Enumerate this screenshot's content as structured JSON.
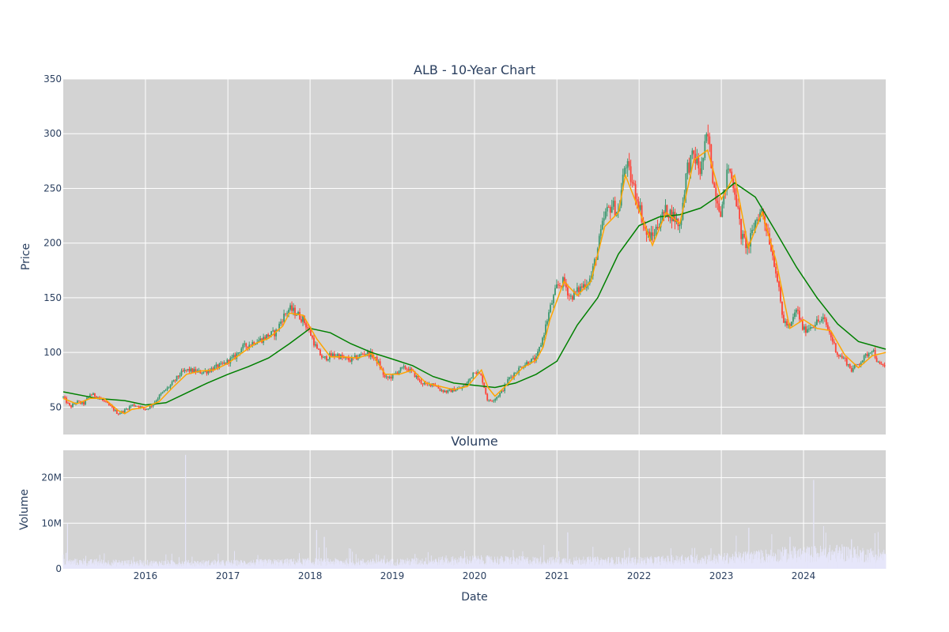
{
  "chart_data": [
    {
      "type": "candlestick",
      "title": "ALB - 10-Year Chart",
      "ylabel": "Price",
      "ylim": [
        25,
        350
      ],
      "xlim": [
        "2015-01-01",
        "2024-12-31"
      ],
      "yticks": [
        50,
        100,
        150,
        200,
        250,
        300,
        350
      ],
      "grid": true,
      "background": "#d3d3d3",
      "colors": {
        "up": "#3d9970",
        "down": "#ff4136",
        "ma_short": "#ffa500",
        "ma_long": "#008000"
      },
      "price_path": [
        [
          "2015-01-01",
          59
        ],
        [
          "2015-02-01",
          50
        ],
        [
          "2015-03-01",
          55
        ],
        [
          "2015-04-01",
          53
        ],
        [
          "2015-05-01",
          62
        ],
        [
          "2015-06-01",
          60
        ],
        [
          "2015-07-01",
          55
        ],
        [
          "2015-08-01",
          50
        ],
        [
          "2015-09-01",
          44
        ],
        [
          "2015-10-01",
          47
        ],
        [
          "2015-11-01",
          52
        ],
        [
          "2015-12-01",
          51
        ],
        [
          "2016-01-01",
          48
        ],
        [
          "2016-02-01",
          52
        ],
        [
          "2016-03-01",
          60
        ],
        [
          "2016-04-01",
          66
        ],
        [
          "2016-05-01",
          72
        ],
        [
          "2016-06-01",
          80
        ],
        [
          "2016-07-01",
          84
        ],
        [
          "2016-08-01",
          83
        ],
        [
          "2016-09-01",
          82
        ],
        [
          "2016-10-01",
          83
        ],
        [
          "2016-11-01",
          86
        ],
        [
          "2016-12-01",
          88
        ],
        [
          "2017-01-01",
          92
        ],
        [
          "2017-02-01",
          96
        ],
        [
          "2017-03-01",
          104
        ],
        [
          "2017-04-01",
          107
        ],
        [
          "2017-05-01",
          110
        ],
        [
          "2017-06-01",
          112
        ],
        [
          "2017-07-01",
          116
        ],
        [
          "2017-08-01",
          118
        ],
        [
          "2017-09-01",
          132
        ],
        [
          "2017-10-01",
          140
        ],
        [
          "2017-11-01",
          136
        ],
        [
          "2017-12-01",
          130
        ],
        [
          "2018-01-01",
          118
        ],
        [
          "2018-02-01",
          102
        ],
        [
          "2018-03-01",
          94
        ],
        [
          "2018-04-01",
          97
        ],
        [
          "2018-05-01",
          98
        ],
        [
          "2018-06-01",
          94
        ],
        [
          "2018-07-01",
          93
        ],
        [
          "2018-08-01",
          96
        ],
        [
          "2018-09-01",
          100
        ],
        [
          "2018-10-01",
          98
        ],
        [
          "2018-11-01",
          90
        ],
        [
          "2018-12-01",
          76
        ],
        [
          "2019-01-01",
          78
        ],
        [
          "2019-02-01",
          84
        ],
        [
          "2019-03-01",
          86
        ],
        [
          "2019-04-01",
          82
        ],
        [
          "2019-05-01",
          74
        ],
        [
          "2019-06-01",
          70
        ],
        [
          "2019-07-01",
          72
        ],
        [
          "2019-08-01",
          66
        ],
        [
          "2019-09-01",
          64
        ],
        [
          "2019-10-01",
          66
        ],
        [
          "2019-11-01",
          67
        ],
        [
          "2019-12-01",
          72
        ],
        [
          "2020-01-01",
          84
        ],
        [
          "2020-02-01",
          78
        ],
        [
          "2020-03-01",
          55
        ],
        [
          "2020-04-01",
          58
        ],
        [
          "2020-05-01",
          64
        ],
        [
          "2020-06-01",
          76
        ],
        [
          "2020-07-01",
          82
        ],
        [
          "2020-08-01",
          88
        ],
        [
          "2020-09-01",
          92
        ],
        [
          "2020-10-01",
          94
        ],
        [
          "2020-11-01",
          115
        ],
        [
          "2020-12-01",
          140
        ],
        [
          "2021-01-01",
          160
        ],
        [
          "2021-02-01",
          165
        ],
        [
          "2021-03-01",
          150
        ],
        [
          "2021-04-01",
          156
        ],
        [
          "2021-05-01",
          162
        ],
        [
          "2021-06-01",
          168
        ],
        [
          "2021-07-01",
          195
        ],
        [
          "2021-08-01",
          225
        ],
        [
          "2021-09-01",
          235
        ],
        [
          "2021-10-01",
          228
        ],
        [
          "2021-11-01",
          275
        ],
        [
          "2021-12-01",
          255
        ],
        [
          "2022-01-01",
          235
        ],
        [
          "2022-02-01",
          208
        ],
        [
          "2022-03-01",
          205
        ],
        [
          "2022-04-01",
          220
        ],
        [
          "2022-05-01",
          230
        ],
        [
          "2022-06-01",
          225
        ],
        [
          "2022-07-01",
          215
        ],
        [
          "2022-08-01",
          268
        ],
        [
          "2022-09-01",
          280
        ],
        [
          "2022-10-01",
          265
        ],
        [
          "2022-11-01",
          300
        ],
        [
          "2022-12-01",
          250
        ],
        [
          "2023-01-01",
          228
        ],
        [
          "2023-02-01",
          270
        ],
        [
          "2023-03-01",
          250
        ],
        [
          "2023-04-01",
          205
        ],
        [
          "2023-05-01",
          196
        ],
        [
          "2023-06-01",
          220
        ],
        [
          "2023-07-01",
          230
        ],
        [
          "2023-08-01",
          205
        ],
        [
          "2023-09-01",
          175
        ],
        [
          "2023-10-01",
          130
        ],
        [
          "2023-11-01",
          122
        ],
        [
          "2023-12-01",
          140
        ],
        [
          "2024-01-01",
          120
        ],
        [
          "2024-02-01",
          124
        ],
        [
          "2024-03-01",
          128
        ],
        [
          "2024-04-01",
          130
        ],
        [
          "2024-05-01",
          115
        ],
        [
          "2024-06-01",
          98
        ],
        [
          "2024-07-01",
          94
        ],
        [
          "2024-08-01",
          84
        ],
        [
          "2024-09-01",
          90
        ],
        [
          "2024-10-01",
          96
        ],
        [
          "2024-11-01",
          104
        ],
        [
          "2024-12-01",
          88
        ]
      ],
      "ma_short": [
        [
          "2015-01-01",
          58
        ],
        [
          "2015-03-01",
          53
        ],
        [
          "2015-05-01",
          58
        ],
        [
          "2015-07-01",
          58
        ],
        [
          "2015-09-01",
          47
        ],
        [
          "2015-10-01",
          44
        ],
        [
          "2015-11-01",
          48
        ],
        [
          "2016-01-01",
          50
        ],
        [
          "2016-03-01",
          55
        ],
        [
          "2016-05-01",
          68
        ],
        [
          "2016-07-01",
          80
        ],
        [
          "2016-09-01",
          83
        ],
        [
          "2016-11-01",
          84
        ],
        [
          "2017-01-01",
          90
        ],
        [
          "2017-03-01",
          99
        ],
        [
          "2017-05-01",
          108
        ],
        [
          "2017-07-01",
          113
        ],
        [
          "2017-09-01",
          124
        ],
        [
          "2017-10-01",
          136
        ],
        [
          "2017-12-01",
          134
        ],
        [
          "2018-02-01",
          112
        ],
        [
          "2018-04-01",
          96
        ],
        [
          "2018-06-01",
          96
        ],
        [
          "2018-08-01",
          95
        ],
        [
          "2018-10-01",
          99
        ],
        [
          "2018-12-01",
          80
        ],
        [
          "2019-02-01",
          80
        ],
        [
          "2019-04-01",
          84
        ],
        [
          "2019-06-01",
          72
        ],
        [
          "2019-08-01",
          69
        ],
        [
          "2019-10-01",
          66
        ],
        [
          "2019-12-01",
          69
        ],
        [
          "2020-02-01",
          84
        ],
        [
          "2020-03-01",
          68
        ],
        [
          "2020-04-01",
          60
        ],
        [
          "2020-06-01",
          72
        ],
        [
          "2020-08-01",
          86
        ],
        [
          "2020-10-01",
          93
        ],
        [
          "2020-11-01",
          105
        ],
        [
          "2020-12-01",
          130
        ],
        [
          "2021-02-01",
          165
        ],
        [
          "2021-04-01",
          152
        ],
        [
          "2021-06-01",
          165
        ],
        [
          "2021-08-01",
          215
        ],
        [
          "2021-10-01",
          228
        ],
        [
          "2021-11-01",
          262
        ],
        [
          "2022-01-01",
          230
        ],
        [
          "2022-03-01",
          198
        ],
        [
          "2022-05-01",
          228
        ],
        [
          "2022-07-01",
          218
        ],
        [
          "2022-09-01",
          276
        ],
        [
          "2022-11-01",
          285
        ],
        [
          "2023-01-01",
          240
        ],
        [
          "2023-03-01",
          262
        ],
        [
          "2023-05-01",
          196
        ],
        [
          "2023-07-01",
          228
        ],
        [
          "2023-09-01",
          184
        ],
        [
          "2023-11-01",
          122
        ],
        [
          "2024-01-01",
          130
        ],
        [
          "2024-03-01",
          122
        ],
        [
          "2024-05-01",
          120
        ],
        [
          "2024-07-01",
          98
        ],
        [
          "2024-09-01",
          86
        ],
        [
          "2024-11-01",
          97
        ],
        [
          "2024-12-31",
          100
        ]
      ],
      "ma_long": [
        [
          "2015-01-01",
          64
        ],
        [
          "2015-06-01",
          58
        ],
        [
          "2015-10-01",
          56
        ],
        [
          "2016-01-01",
          52
        ],
        [
          "2016-04-01",
          54
        ],
        [
          "2016-07-01",
          63
        ],
        [
          "2016-10-01",
          72
        ],
        [
          "2017-01-01",
          80
        ],
        [
          "2017-04-01",
          87
        ],
        [
          "2017-07-01",
          95
        ],
        [
          "2017-10-01",
          108
        ],
        [
          "2018-01-01",
          122
        ],
        [
          "2018-04-01",
          118
        ],
        [
          "2018-07-01",
          108
        ],
        [
          "2018-10-01",
          100
        ],
        [
          "2019-01-01",
          94
        ],
        [
          "2019-04-01",
          88
        ],
        [
          "2019-07-01",
          78
        ],
        [
          "2019-10-01",
          72
        ],
        [
          "2020-01-01",
          70
        ],
        [
          "2020-04-01",
          68
        ],
        [
          "2020-07-01",
          72
        ],
        [
          "2020-10-01",
          80
        ],
        [
          "2021-01-01",
          92
        ],
        [
          "2021-04-01",
          125
        ],
        [
          "2021-07-01",
          150
        ],
        [
          "2021-10-01",
          190
        ],
        [
          "2022-01-01",
          216
        ],
        [
          "2022-04-01",
          224
        ],
        [
          "2022-07-01",
          226
        ],
        [
          "2022-10-01",
          232
        ],
        [
          "2023-01-01",
          245
        ],
        [
          "2023-03-01",
          255
        ],
        [
          "2023-06-01",
          242
        ],
        [
          "2023-09-01",
          210
        ],
        [
          "2023-12-01",
          178
        ],
        [
          "2024-03-01",
          150
        ],
        [
          "2024-06-01",
          126
        ],
        [
          "2024-09-01",
          110
        ],
        [
          "2024-12-31",
          103
        ]
      ]
    },
    {
      "type": "bar",
      "title": "Volume",
      "ylabel": "Volume",
      "xlabel": "Date",
      "ylim": [
        0,
        26000000
      ],
      "yticks": [
        {
          "value": 0,
          "label": "0"
        },
        {
          "value": 10000000,
          "label": "10M"
        },
        {
          "value": 20000000,
          "label": "20M"
        }
      ],
      "xticks": [
        {
          "date": "2016-01-01",
          "label": "2016"
        },
        {
          "date": "2017-01-01",
          "label": "2017"
        },
        {
          "date": "2018-01-01",
          "label": "2018"
        },
        {
          "date": "2019-01-01",
          "label": "2019"
        },
        {
          "date": "2020-01-01",
          "label": "2020"
        },
        {
          "date": "2021-01-01",
          "label": "2021"
        },
        {
          "date": "2022-01-01",
          "label": "2022"
        },
        {
          "date": "2023-01-01",
          "label": "2023"
        },
        {
          "date": "2024-01-01",
          "label": "2024"
        }
      ],
      "bar_color": "#e6e6fa",
      "background": "#d3d3d3",
      "volume_baseline": [
        [
          "2015-01-01",
          1500000
        ],
        [
          "2016-01-01",
          1300000
        ],
        [
          "2017-01-01",
          1300000
        ],
        [
          "2018-01-01",
          1600000
        ],
        [
          "2019-01-01",
          1500000
        ],
        [
          "2020-01-01",
          2000000
        ],
        [
          "2021-01-01",
          1800000
        ],
        [
          "2022-01-01",
          1800000
        ],
        [
          "2023-01-01",
          2300000
        ],
        [
          "2023-10-01",
          3200000
        ],
        [
          "2024-06-01",
          3600000
        ],
        [
          "2024-12-31",
          3000000
        ]
      ],
      "volume_spikes": [
        [
          "2015-01-20",
          10000000
        ],
        [
          "2016-06-27",
          25000000
        ],
        [
          "2018-01-30",
          8500000
        ],
        [
          "2018-03-05",
          7000000
        ],
        [
          "2021-02-18",
          8000000
        ],
        [
          "2023-05-03",
          9000000
        ],
        [
          "2023-11-02",
          7000000
        ],
        [
          "2024-02-15",
          19500000
        ],
        [
          "2024-08-01",
          6500000
        ]
      ]
    }
  ]
}
